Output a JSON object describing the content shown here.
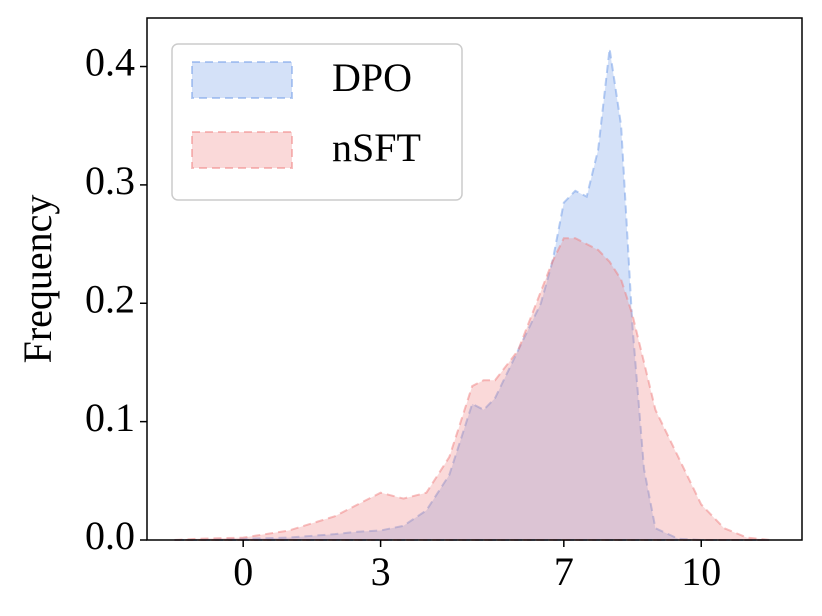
{
  "chart_data": {
    "type": "area",
    "ylabel": "Frequency",
    "x": [
      -1.5,
      -1,
      0,
      1,
      2,
      2.5,
      3,
      3.5,
      4,
      4.5,
      4.75,
      5,
      5.25,
      5.5,
      6,
      6.5,
      6.75,
      7,
      7.25,
      7.5,
      7.75,
      8,
      8.25,
      8.5,
      8.75,
      9,
      9.5,
      10,
      10.5,
      11,
      11.5
    ],
    "series": [
      {
        "name": "DPO",
        "color": "#6f9be8",
        "values": [
          0,
          0,
          0.001,
          0.002,
          0.005,
          0.007,
          0.008,
          0.012,
          0.025,
          0.055,
          0.085,
          0.115,
          0.11,
          0.12,
          0.16,
          0.2,
          0.235,
          0.285,
          0.295,
          0.29,
          0.33,
          0.415,
          0.35,
          0.18,
          0.06,
          0.01,
          0.001,
          0,
          0,
          0,
          0
        ]
      },
      {
        "name": "nSFT",
        "color": "#f08080",
        "values": [
          0,
          0.001,
          0.002,
          0.008,
          0.02,
          0.03,
          0.04,
          0.035,
          0.04,
          0.07,
          0.1,
          0.13,
          0.135,
          0.135,
          0.16,
          0.21,
          0.235,
          0.255,
          0.255,
          0.25,
          0.245,
          0.235,
          0.22,
          0.19,
          0.15,
          0.11,
          0.07,
          0.03,
          0.01,
          0.002,
          0
        ]
      }
    ],
    "xlim": [
      -2.1,
      12.2
    ],
    "xticks": [
      0,
      3,
      7,
      10
    ],
    "ylim": [
      0,
      0.441
    ],
    "yticks": [
      {
        "value": 0,
        "label": "0.0"
      },
      0.1,
      0.2,
      0.3,
      0.4
    ],
    "grid": false,
    "legend": "upper left"
  }
}
